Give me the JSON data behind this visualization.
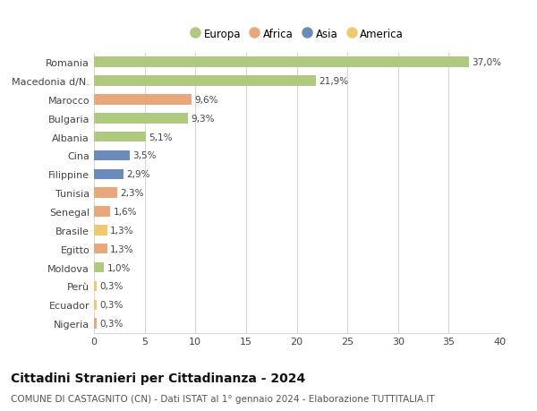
{
  "countries": [
    "Romania",
    "Macedonia d/N.",
    "Marocco",
    "Bulgaria",
    "Albania",
    "Cina",
    "Filippine",
    "Tunisia",
    "Senegal",
    "Brasile",
    "Egitto",
    "Moldova",
    "Perù",
    "Ecuador",
    "Nigeria"
  ],
  "values": [
    37.0,
    21.9,
    9.6,
    9.3,
    5.1,
    3.5,
    2.9,
    2.3,
    1.6,
    1.3,
    1.3,
    1.0,
    0.3,
    0.3,
    0.3
  ],
  "labels": [
    "37,0%",
    "21,9%",
    "9,6%",
    "9,3%",
    "5,1%",
    "3,5%",
    "2,9%",
    "2,3%",
    "1,6%",
    "1,3%",
    "1,3%",
    "1,0%",
    "0,3%",
    "0,3%",
    "0,3%"
  ],
  "continents": [
    "Europa",
    "Europa",
    "Africa",
    "Europa",
    "Europa",
    "Asia",
    "Asia",
    "Africa",
    "Africa",
    "America",
    "Africa",
    "Europa",
    "America",
    "America",
    "Africa"
  ],
  "continent_colors": {
    "Europa": "#afc97e",
    "Africa": "#e8a87c",
    "Asia": "#6b8cba",
    "America": "#f0c96e"
  },
  "legend_order": [
    "Europa",
    "Africa",
    "Asia",
    "America"
  ],
  "title": "Cittadini Stranieri per Cittadinanza - 2024",
  "subtitle": "COMUNE DI CASTAGNITO (CN) - Dati ISTAT al 1° gennaio 2024 - Elaborazione TUTTITALIA.IT",
  "xlim": [
    0,
    40
  ],
  "xticks": [
    0,
    5,
    10,
    15,
    20,
    25,
    30,
    35,
    40
  ],
  "background_color": "#ffffff",
  "grid_color": "#d8d8d8",
  "bar_height": 0.55,
  "label_fontsize": 7.5,
  "title_fontsize": 10,
  "subtitle_fontsize": 7.5,
  "ytick_fontsize": 8,
  "xtick_fontsize": 8,
  "legend_fontsize": 8.5
}
